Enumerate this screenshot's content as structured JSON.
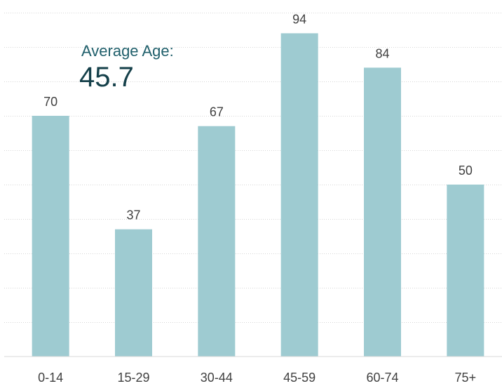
{
  "chart_data": {
    "type": "bar",
    "categories": [
      "0-14",
      "15-29",
      "30-44",
      "45-59",
      "60-74",
      "75+"
    ],
    "values": [
      70,
      37,
      67,
      94,
      84,
      50
    ],
    "title": "",
    "xlabel": "",
    "ylabel": "",
    "ylim": [
      0,
      100
    ],
    "grid": true,
    "bar_color": "#9ecbd1",
    "annotation": {
      "label": "Average Age:",
      "value": "45.7",
      "label_color": "#1f5f6b",
      "value_color": "#15404a"
    }
  }
}
